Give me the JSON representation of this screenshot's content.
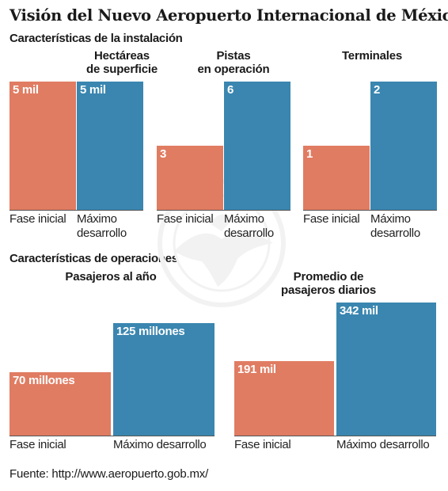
{
  "title": "Visión del Nuevo Aeropuerto Internacional de México",
  "colors": {
    "inicial": "#E07C62",
    "maximo": "#3A86B0"
  },
  "sections": {
    "instalacion": "Características de la instalación",
    "operaciones": "Características de operaciones"
  },
  "source": "Fuente: http://www.aeropuerto.gob.mx/",
  "chart_data": [
    {
      "type": "bar",
      "title": "Hectáreas de superficie",
      "categories": [
        "Fase inicial",
        "Máximo desarrollo"
      ],
      "values": [
        5000,
        5000
      ],
      "labels": [
        "5 mil",
        "5 mil"
      ],
      "ylim": [
        0,
        5000
      ]
    },
    {
      "type": "bar",
      "title": "Pistas en operación",
      "categories": [
        "Fase inicial",
        "Máximo desarrollo"
      ],
      "values": [
        3,
        6
      ],
      "labels": [
        "3",
        "6"
      ],
      "ylim": [
        0,
        6
      ]
    },
    {
      "type": "bar",
      "title": "Terminales",
      "categories": [
        "Fase inicial",
        "Máximo desarrollo"
      ],
      "values": [
        1,
        2
      ],
      "labels": [
        "1",
        "2"
      ],
      "ylim": [
        0,
        2
      ]
    },
    {
      "type": "bar",
      "title": "Pasajeros al año",
      "categories": [
        "Fase inicial",
        "Máximo desarrollo"
      ],
      "values": [
        70000000,
        125000000
      ],
      "labels": [
        "70 millones",
        "125 millones"
      ],
      "ylim": [
        0,
        125000000
      ]
    },
    {
      "type": "bar",
      "title": "Promedio de pasajeros diarios",
      "categories": [
        "Fase inicial",
        "Máximo desarrollo"
      ],
      "values": [
        191000,
        342000
      ],
      "labels": [
        "191 mil",
        "342 mil"
      ],
      "ylim": [
        0,
        342000
      ]
    }
  ]
}
